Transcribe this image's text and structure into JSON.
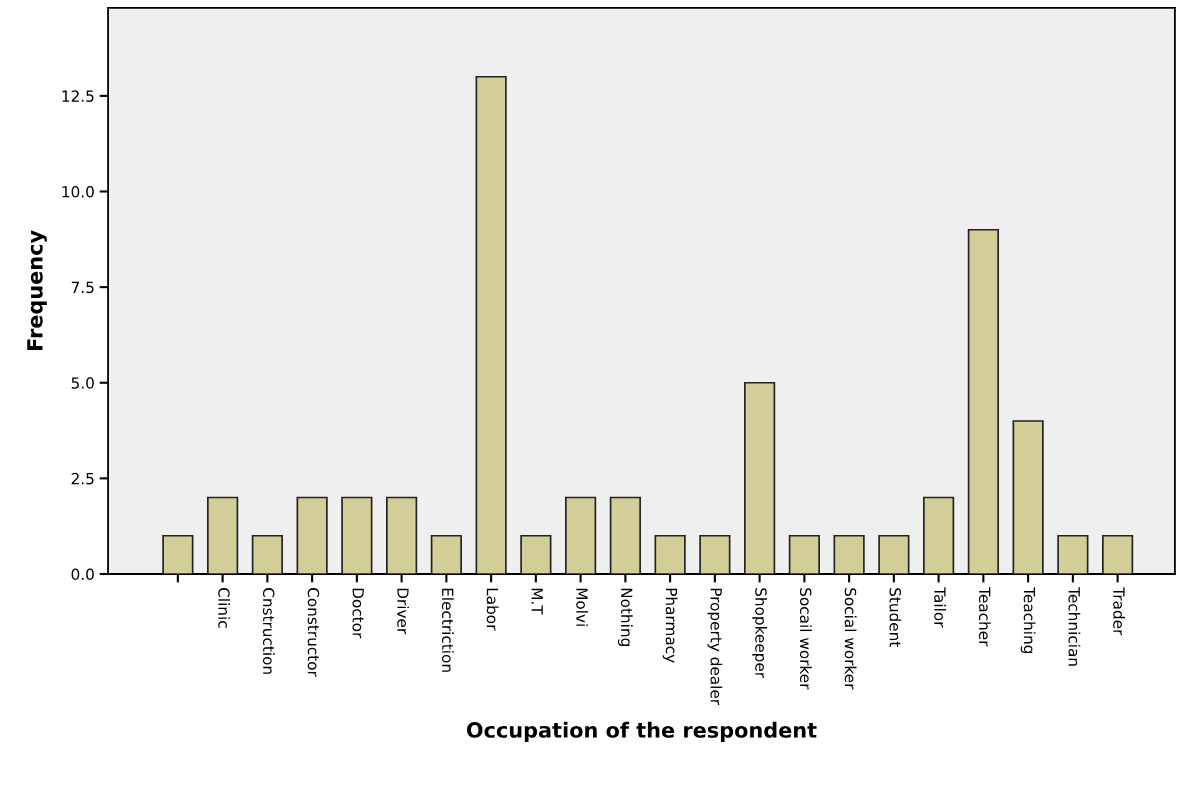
{
  "chart_data": {
    "type": "bar",
    "xlabel": "Occupation of the respondent",
    "ylabel": "Frequency",
    "categories": [
      null,
      "Clinic",
      "Cnstruction",
      "Constructor",
      "Doctor",
      "Driver",
      "Electriction",
      "Labor",
      "M.T",
      "Molvi",
      "Nothing",
      "Pharmacy",
      "Property dealer",
      "Shopkeeper",
      "Socail worker",
      "Social worker",
      "Student",
      "Tailor",
      "Teacher",
      "Teaching",
      "Technician",
      "Trader"
    ],
    "values": [
      1,
      2,
      1,
      2,
      2,
      2,
      1,
      13,
      1,
      2,
      2,
      1,
      1,
      5,
      1,
      1,
      1,
      2,
      9,
      4,
      1,
      1
    ],
    "color": "#d3ce97",
    "ylim": [
      0,
      14.8
    ],
    "yticks": [
      {
        "value": 0,
        "label": "0.0"
      },
      {
        "value": 2.5,
        "label": "2.5"
      },
      {
        "value": 5,
        "label": "5.0"
      },
      {
        "value": 7.5,
        "label": "7.5"
      },
      {
        "value": 10,
        "label": "10.0"
      },
      {
        "value": 12.5,
        "label": "12.5"
      }
    ],
    "grid": false
  }
}
